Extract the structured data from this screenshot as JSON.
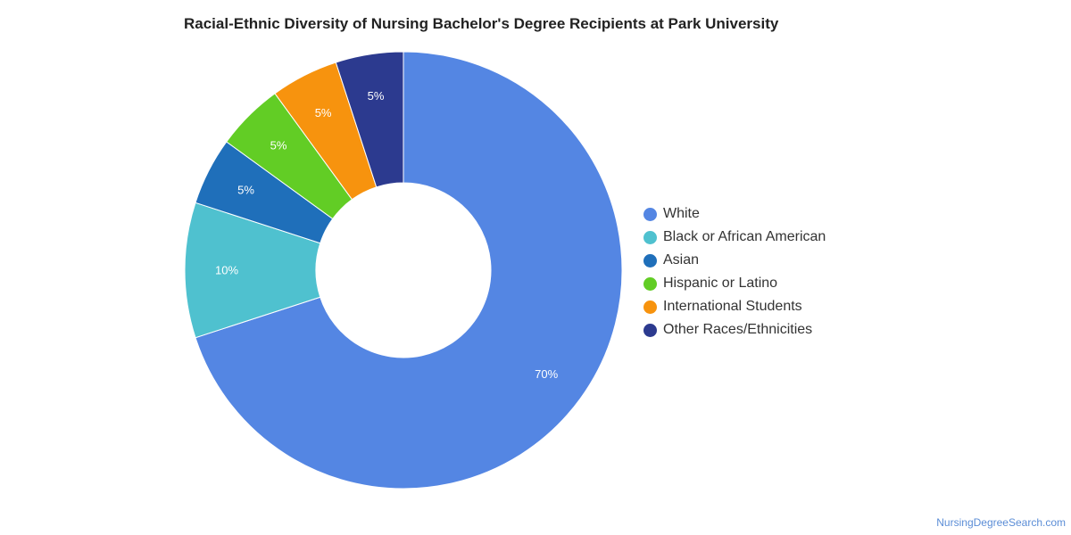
{
  "chart_data": {
    "type": "pie",
    "title": "Racial-Ethnic Diversity of Nursing Bachelor's Degree Recipients at Park University",
    "series": [
      {
        "name": "White",
        "value": 70,
        "label": "70%",
        "color": "#5486e3"
      },
      {
        "name": "Black or African American",
        "value": 10,
        "label": "10%",
        "color": "#4fc1cf"
      },
      {
        "name": "Asian",
        "value": 5,
        "label": "5%",
        "color": "#1f6fba"
      },
      {
        "name": "Hispanic or Latino",
        "value": 5,
        "label": "5%",
        "color": "#62cd25"
      },
      {
        "name": "International Students",
        "value": 5,
        "label": "5%",
        "color": "#f7930e"
      },
      {
        "name": "Other Races/Ethnicities",
        "value": 5,
        "label": "5%",
        "color": "#2c3a8f"
      }
    ],
    "legend_position": "right",
    "donut": true
  },
  "watermark": "NursingDegreeSearch.com"
}
